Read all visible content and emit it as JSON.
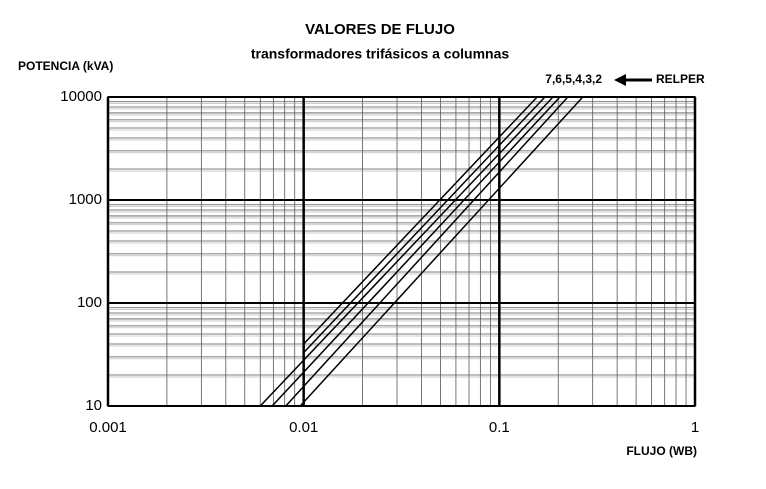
{
  "chart_data": {
    "type": "line",
    "title": "VALORES DE FLUJO",
    "subtitle": "transformadores trifásicos a columnas",
    "y_label": "POTENCIA (kVA)",
    "x_label": "FLUJO (WB)",
    "annotations": [
      "7,6,5,4,3,2",
      "RELPER"
    ],
    "log_x": true,
    "log_y": true,
    "grid": true,
    "minor_grid": true,
    "xlim": [
      0.001,
      1
    ],
    "ylim": [
      10,
      10000
    ],
    "xticks": [
      0.001,
      0.01,
      0.1,
      1
    ],
    "yticks": [
      10,
      100,
      1000,
      10000
    ],
    "series": [
      {
        "color": "#000000",
        "x": [
          0.01,
          0.156
        ],
        "values": [
          40,
          10000
        ]
      },
      {
        "color": "#000000",
        "x": [
          0.01,
          0.171
        ],
        "values": [
          33,
          10000
        ]
      },
      {
        "color": "#000000",
        "x": [
          0.006,
          0.188
        ],
        "values": [
          10,
          10000
        ]
      },
      {
        "color": "#000000",
        "x": [
          0.0069,
          0.204
        ],
        "values": [
          10,
          10000
        ]
      },
      {
        "color": "#000000",
        "x": [
          0.0081,
          0.224
        ],
        "values": [
          10,
          10000
        ]
      },
      {
        "color": "#000000",
        "x": [
          0.0096,
          0.267
        ],
        "values": [
          10,
          10000
        ]
      }
    ]
  }
}
